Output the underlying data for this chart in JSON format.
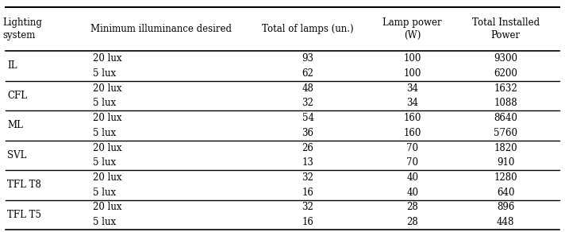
{
  "col_headers": [
    "Lighting\nsystem",
    "Minimum illuminance desired",
    "Total of lamps (un.)",
    "Lamp power\n(W)",
    "Total Installed\nPower"
  ],
  "rows": [
    {
      "system": "IL",
      "illum": "20 lux",
      "lamps": "93",
      "power": "100",
      "total": "9300"
    },
    {
      "system": "",
      "illum": "5 lux",
      "lamps": "62",
      "power": "100",
      "total": "6200"
    },
    {
      "system": "CFL",
      "illum": "20 lux",
      "lamps": "48",
      "power": "34",
      "total": "1632"
    },
    {
      "system": "",
      "illum": "5 lux",
      "lamps": "32",
      "power": "34",
      "total": "1088"
    },
    {
      "system": "ML",
      "illum": "20 lux",
      "lamps": "54",
      "power": "160",
      "total": "8640"
    },
    {
      "system": "",
      "illum": "5 lux",
      "lamps": "36",
      "power": "160",
      "total": "5760"
    },
    {
      "system": "SVL",
      "illum": "20 lux",
      "lamps": "26",
      "power": "70",
      "total": "1820"
    },
    {
      "system": "",
      "illum": "5 lux",
      "lamps": "13",
      "power": "70",
      "total": "910"
    },
    {
      "system": "TFL T8",
      "illum": "20 lux",
      "lamps": "32",
      "power": "40",
      "total": "1280"
    },
    {
      "system": "",
      "illum": "5 lux",
      "lamps": "16",
      "power": "40",
      "total": "640"
    },
    {
      "system": "TFL T5",
      "illum": "20 lux",
      "lamps": "32",
      "power": "28",
      "total": "896"
    },
    {
      "system": "",
      "illum": "5 lux",
      "lamps": "16",
      "power": "28",
      "total": "448"
    }
  ],
  "bg_color": "#ffffff",
  "text_color": "#000000",
  "font_size": 8.5,
  "header_font_size": 8.5,
  "font_family": "DejaVu Serif"
}
